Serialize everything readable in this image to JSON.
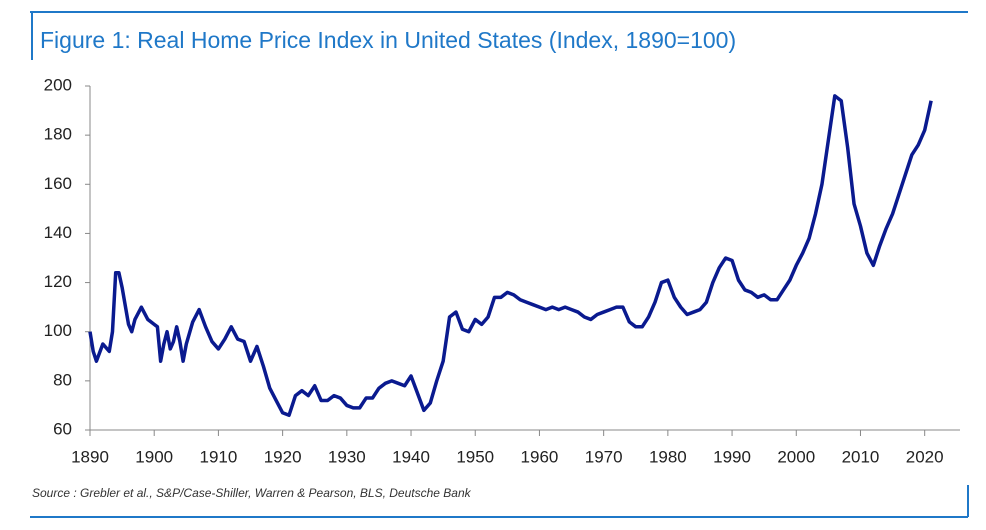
{
  "chart_data": {
    "type": "line",
    "title": "Figure 1: Real Home Price Index in United States (Index, 1890=100)",
    "source": "Source : Grebler et al., S&P/Case-Shiller, Warren & Pearson, BLS, Deutsche Bank",
    "color": "#0a1a8f",
    "x": [
      1890,
      1890.5,
      1891,
      1892,
      1893,
      1893.5,
      1894,
      1894.5,
      1895,
      1896,
      1896.5,
      1897,
      1898,
      1899,
      1900,
      1900.5,
      1901,
      1901.5,
      1902,
      1902.5,
      1903,
      1903.5,
      1904,
      1904.5,
      1905,
      1906,
      1907,
      1908,
      1909,
      1910,
      1911,
      1912,
      1913,
      1914,
      1915,
      1916,
      1917,
      1918,
      1919,
      1920,
      1921,
      1922,
      1923,
      1924,
      1925,
      1926,
      1927,
      1928,
      1929,
      1930,
      1931,
      1932,
      1933,
      1934,
      1935,
      1936,
      1937,
      1938,
      1939,
      1940,
      1941,
      1942,
      1943,
      1944,
      1945,
      1946,
      1947,
      1948,
      1949,
      1950,
      1951,
      1952,
      1953,
      1954,
      1955,
      1956,
      1957,
      1958,
      1959,
      1960,
      1961,
      1962,
      1963,
      1964,
      1965,
      1966,
      1967,
      1968,
      1969,
      1970,
      1971,
      1972,
      1973,
      1974,
      1975,
      1976,
      1977,
      1978,
      1979,
      1980,
      1981,
      1982,
      1983,
      1984,
      1985,
      1986,
      1987,
      1988,
      1989,
      1990,
      1991,
      1992,
      1993,
      1994,
      1995,
      1996,
      1997,
      1998,
      1999,
      2000,
      2001,
      2002,
      2003,
      2004,
      2005,
      2006,
      2007,
      2008,
      2009,
      2010,
      2011,
      2012,
      2013,
      2014,
      2015,
      2016,
      2017,
      2018,
      2019,
      2020,
      2021
    ],
    "values": [
      100,
      92,
      88,
      95,
      92,
      100,
      124,
      124,
      118,
      103,
      100,
      105,
      110,
      105,
      103,
      102,
      88,
      95,
      100,
      93,
      96,
      102,
      96,
      88,
      95,
      104,
      109,
      102,
      96,
      93,
      97,
      102,
      97,
      96,
      88,
      94,
      86,
      77,
      72,
      67,
      66,
      74,
      76,
      74,
      78,
      72,
      72,
      74,
      73,
      70,
      69,
      69,
      73,
      73,
      77,
      79,
      80,
      79,
      78,
      82,
      75,
      68,
      71,
      80,
      88,
      106,
      108,
      101,
      100,
      105,
      103,
      106,
      114,
      114,
      116,
      115,
      113,
      112,
      111,
      110,
      109,
      110,
      109,
      110,
      109,
      108,
      106,
      105,
      107,
      108,
      109,
      110,
      110,
      104,
      102,
      102,
      106,
      112,
      120,
      121,
      114,
      110,
      107,
      108,
      109,
      112,
      120,
      126,
      130,
      129,
      121,
      117,
      116,
      114,
      115,
      113,
      113,
      117,
      121,
      127,
      132,
      138,
      148,
      160,
      178,
      196,
      194,
      175,
      152,
      143,
      132,
      127,
      135,
      142,
      148,
      156,
      164,
      172,
      176,
      182,
      194
    ],
    "xlim": [
      1890,
      2025.5
    ],
    "xticks": [
      1890,
      1900,
      1910,
      1920,
      1930,
      1940,
      1950,
      1960,
      1970,
      1980,
      1990,
      2000,
      2010,
      2020
    ],
    "ylim": [
      60,
      200
    ],
    "yticks": [
      60,
      80,
      100,
      120,
      140,
      160,
      180,
      200
    ]
  }
}
